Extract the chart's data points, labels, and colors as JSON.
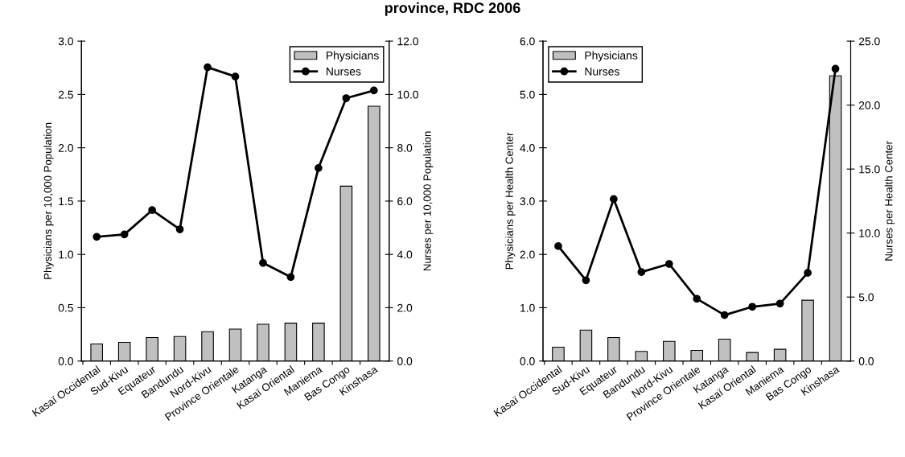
{
  "chart_data": [
    {
      "type": "bar",
      "title": "province, RDC 2006",
      "ylabel": "Physicians per 10,000 Population",
      "y2label": "Nurses per 10,000 Population",
      "categories": [
        "Kasaï Occidental",
        "Sud-Kivu",
        "Equateur",
        "Bandundu",
        "Nord-Kivu",
        "Province Orientale",
        "Katanga",
        "Kasaï Oriental",
        "Maniema",
        "Bas Congo",
        "Kinshasa"
      ],
      "series": [
        {
          "name": "Physicians",
          "color": "#c0c0c0",
          "values": [
            0.16,
            0.175,
            0.22,
            0.23,
            0.275,
            0.3,
            0.345,
            0.355,
            0.355,
            1.64,
            2.39
          ]
        },
        {
          "name": "Nurses",
          "type": "line",
          "axis": "y2",
          "color": "#000000",
          "marker": "circle",
          "values": [
            4.66,
            4.75,
            5.66,
            4.94,
            11.02,
            10.67,
            3.68,
            3.15,
            7.24,
            9.86,
            10.15
          ]
        }
      ],
      "ylim": [
        0,
        3
      ],
      "yticks": [
        {
          "value": 0,
          "label": "0.0"
        },
        {
          "value": 0.5,
          "label": "0.5"
        },
        {
          "value": 1,
          "label": "1.0"
        },
        {
          "value": 1.5,
          "label": "1.5"
        },
        {
          "value": 2,
          "label": "2.0"
        },
        {
          "value": 2.5,
          "label": "2.5"
        },
        {
          "value": 3,
          "label": "3.0"
        }
      ],
      "y2lim": [
        0,
        12
      ],
      "y2ticks": [
        {
          "value": 0,
          "label": "0.0"
        },
        {
          "value": 2,
          "label": "2.0"
        },
        {
          "value": 4,
          "label": "4.0"
        },
        {
          "value": 6,
          "label": "6.0"
        },
        {
          "value": 8,
          "label": "8.0"
        },
        {
          "value": 10,
          "label": "10.0"
        },
        {
          "value": 12,
          "label": "12.0"
        }
      ],
      "legend": "top right",
      "grid": false
    },
    {
      "type": "bar",
      "ylabel": "Physicians per Health Center",
      "y2label": "Nurses per Health Center",
      "categories": [
        "Kasaï Occidental",
        "Sud-Kivu",
        "Equateur",
        "Bandundu",
        "Nord-Kivu",
        "Province Orientale",
        "Katanga",
        "Kasaï Oriental",
        "Maniema",
        "Bas Congo",
        "Kinshasa"
      ],
      "series": [
        {
          "name": "Physicians",
          "color": "#c0c0c0",
          "values": [
            0.26,
            0.58,
            0.44,
            0.18,
            0.37,
            0.2,
            0.41,
            0.16,
            0.22,
            1.14,
            5.35
          ]
        },
        {
          "name": "Nurses",
          "type": "line",
          "axis": "y2",
          "color": "#000000",
          "marker": "circle",
          "values": [
            8.98,
            6.31,
            12.66,
            6.95,
            7.59,
            4.86,
            3.59,
            4.24,
            4.49,
            6.89,
            22.84
          ]
        }
      ],
      "ylim": [
        0,
        6
      ],
      "yticks": [
        {
          "value": 0,
          "label": "0.0"
        },
        {
          "value": 1,
          "label": "1.0"
        },
        {
          "value": 2,
          "label": "2.0"
        },
        {
          "value": 3,
          "label": "3.0"
        },
        {
          "value": 4,
          "label": "4.0"
        },
        {
          "value": 5,
          "label": "5.0"
        },
        {
          "value": 6,
          "label": "6.0"
        }
      ],
      "y2lim": [
        0,
        25
      ],
      "y2ticks": [
        {
          "value": 0,
          "label": "0.0"
        },
        {
          "value": 5,
          "label": "5.0"
        },
        {
          "value": 10,
          "label": "10.0"
        },
        {
          "value": 15,
          "label": "15.0"
        },
        {
          "value": 20,
          "label": "20.0"
        },
        {
          "value": 25,
          "label": "25.0"
        }
      ],
      "legend": "top left",
      "grid": false
    }
  ]
}
